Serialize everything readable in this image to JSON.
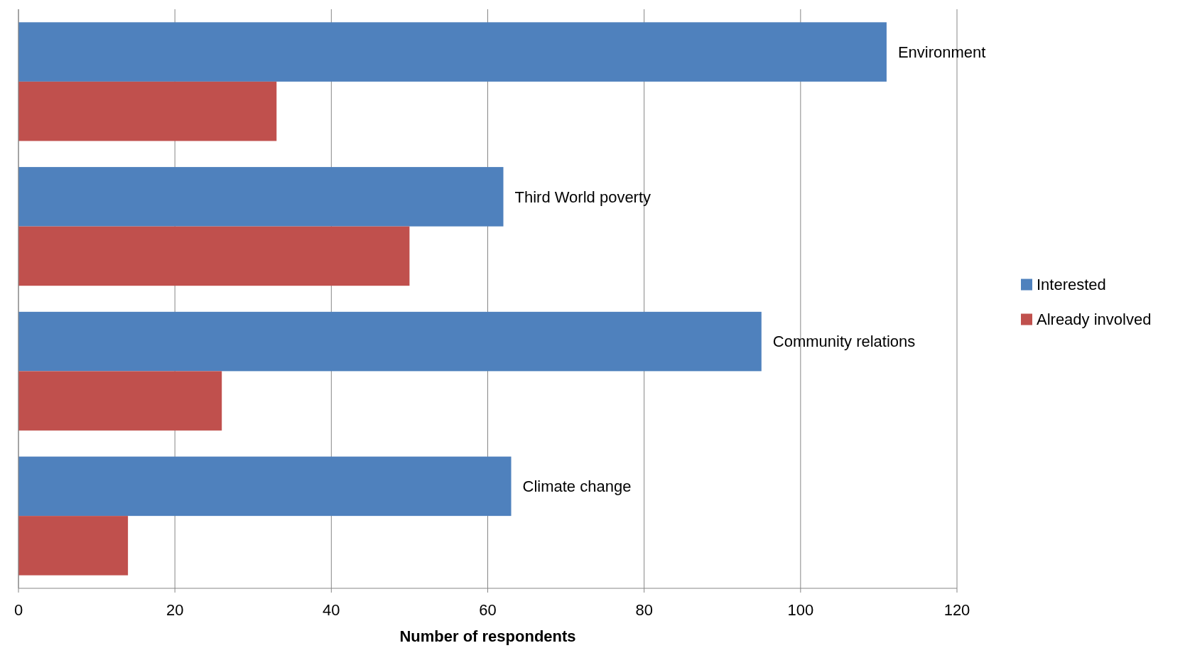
{
  "chart_data": {
    "type": "bar",
    "orientation": "horizontal",
    "xlabel": "Number of respondents",
    "categories": [
      "Environment",
      "Third World poverty",
      "Community relations",
      "Climate change"
    ],
    "series": [
      {
        "name": "Interested",
        "color": "#4f81bd",
        "values": [
          111,
          62,
          95,
          63
        ]
      },
      {
        "name": "Already involved",
        "color": "#c0504d",
        "values": [
          33,
          50,
          26,
          14
        ]
      }
    ],
    "xlim": [
      0,
      120
    ],
    "xticks": [
      0,
      20,
      40,
      60,
      80,
      100,
      120
    ],
    "grid": "x",
    "legend": "right"
  }
}
